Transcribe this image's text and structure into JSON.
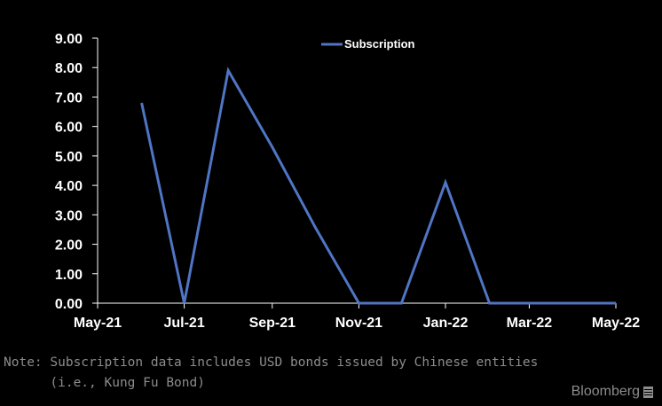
{
  "chart_data": {
    "type": "line",
    "x_ticks": [
      "May-21",
      "Jul-21",
      "Sep-21",
      "Nov-21",
      "Jan-22",
      "Mar-22",
      "May-22"
    ],
    "y_ticks": [
      "0.00",
      "1.00",
      "2.00",
      "3.00",
      "4.00",
      "5.00",
      "6.00",
      "7.00",
      "8.00",
      "9.00"
    ],
    "ylim": [
      0,
      9
    ],
    "xlim": [
      "2021-05-01",
      "2022-05-01"
    ],
    "legend_position": "top-center",
    "grid": false,
    "series": [
      {
        "name": "Subscription",
        "color": "#4f75c4",
        "points": [
          {
            "x": "2021-06-01",
            "y": 6.8
          },
          {
            "x": "2021-07-01",
            "y": 0.0
          },
          {
            "x": "2021-08-01",
            "y": 7.9
          },
          {
            "x": "2021-09-01",
            "y": 5.3
          },
          {
            "x": "2021-10-01",
            "y": 2.6
          },
          {
            "x": "2021-11-01",
            "y": 0.0
          },
          {
            "x": "2021-12-01",
            "y": 0.0
          },
          {
            "x": "2022-01-01",
            "y": 4.1
          },
          {
            "x": "2022-02-01",
            "y": 0.0
          },
          {
            "x": "2022-03-01",
            "y": 0.0
          },
          {
            "x": "2022-04-01",
            "y": 0.0
          },
          {
            "x": "2022-05-01",
            "y": 0.0
          }
        ]
      }
    ]
  },
  "note": {
    "line1": "Note: Subscription data includes USD bonds issued by Chinese entities",
    "line2": "      (i.e., Kung Fu Bond)"
  },
  "source": "Bloomberg",
  "colors": {
    "background": "#000000",
    "axis": "#ffffff",
    "note": "#8c8c8c"
  }
}
